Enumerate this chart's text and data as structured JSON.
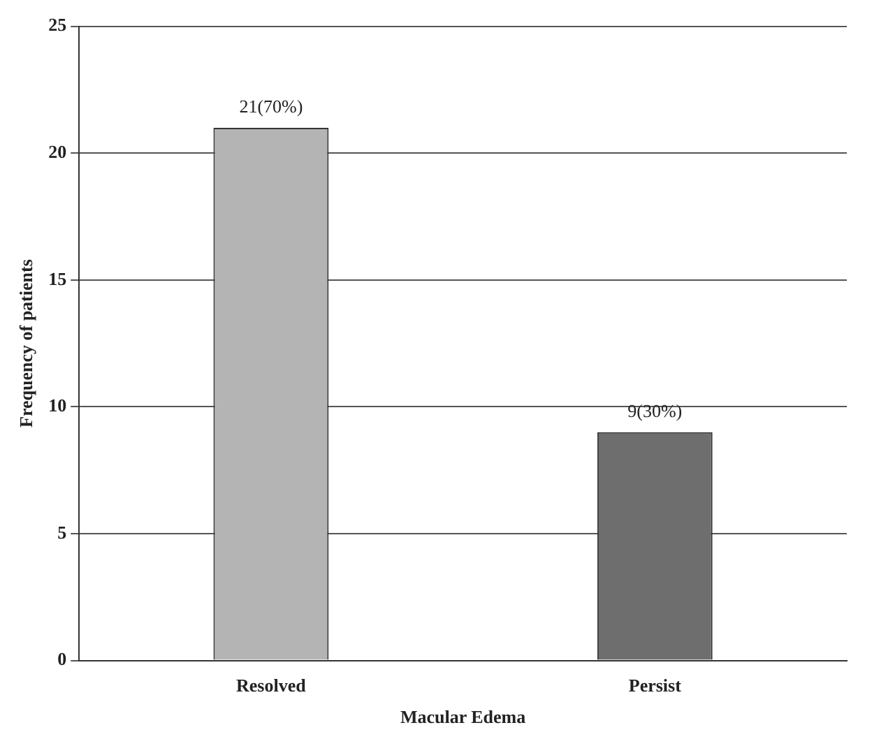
{
  "chart_data": {
    "type": "bar",
    "xlabel": "Macular Edema",
    "ylabel": "Frequency of patients",
    "categories": [
      "Resolved",
      "Persist"
    ],
    "values": [
      21,
      9
    ],
    "colors": [
      "#b4b4b4",
      "#6e6e6e"
    ],
    "value_labels": [
      "21(70%)",
      "9(30%)"
    ],
    "ylim": [
      0,
      25
    ],
    "yticks": [
      0,
      5,
      10,
      15,
      20,
      25
    ],
    "grid": "y",
    "legend": false
  }
}
